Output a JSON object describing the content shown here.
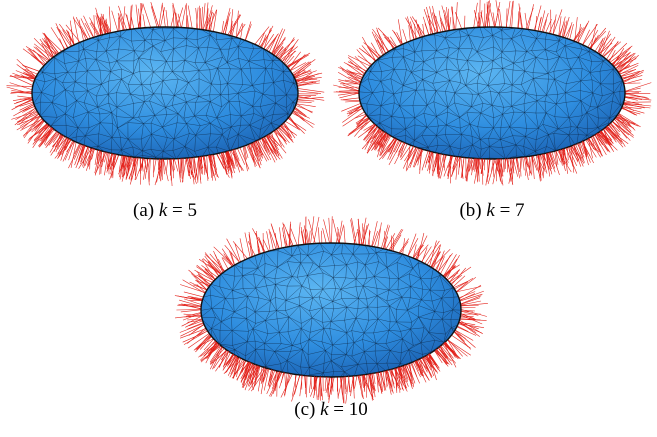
{
  "subfigures": [
    {
      "label": "(a)",
      "variable": "k",
      "relation": "=",
      "value": "5"
    },
    {
      "label": "(b)",
      "variable": "k",
      "relation": "=",
      "value": "7"
    },
    {
      "label": "(c)",
      "variable": "k",
      "relation": "=",
      "value": "10"
    }
  ]
}
